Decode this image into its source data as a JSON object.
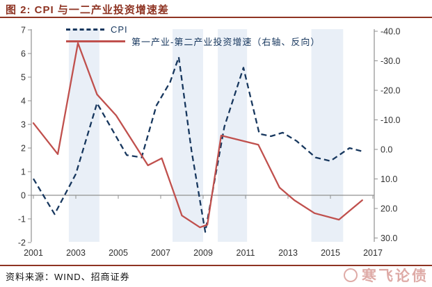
{
  "header": {
    "title": "图 2:  CPI 与一二产业投资增速差"
  },
  "footer": {
    "source_label": "资料来源：WIND、招商证券",
    "watermark_text": "寒飞论债"
  },
  "colors": {
    "title_red": "#8E3322",
    "cpi_line": "#17375E",
    "diff_line": "#C0504D",
    "band_fill": "#E9EFF7",
    "axis_gray": "#909090",
    "tick_text": "#303030"
  },
  "chart_data": {
    "type": "line",
    "title": "图 2: CPI 与一二产业投资增速差",
    "grid": "off",
    "legend_position": "top-left-inside",
    "legend": [
      {
        "name": "CPI",
        "color": "#17375E",
        "style": "dashed",
        "axis": "left"
      },
      {
        "name": "第一产业-第二产业投资增速（右轴、反向）",
        "color": "#C0504D",
        "style": "solid",
        "axis": "right-reversed"
      }
    ],
    "left_axis": {
      "label": "",
      "min": -2,
      "max": 7,
      "ticks": [
        7,
        6,
        5,
        4,
        3,
        2,
        1,
        0,
        -1,
        -2
      ]
    },
    "right_axis": {
      "label": "",
      "min": -40,
      "max": 30,
      "reversed": true,
      "ticks": [
        "-40.0",
        "-30.0",
        "-20.0",
        "-10.0",
        "0.0",
        "10.0",
        "20.0",
        "30.0"
      ]
    },
    "x_axis": {
      "min": 2001,
      "max": 2017.4,
      "tick_labels": [
        "2001",
        "2003",
        "2005",
        "2007",
        "2009",
        "2011",
        "2013",
        "2015",
        "2017"
      ]
    },
    "shaded_bands_years": [
      [
        2002.67,
        2004.11
      ],
      [
        2007.56,
        2009.0
      ],
      [
        2009.69,
        2011.07
      ],
      [
        2014.1,
        2015.6
      ]
    ],
    "series": [
      {
        "name": "CPI",
        "axis": "left",
        "points": [
          [
            2001.0,
            0.7
          ],
          [
            2002.0,
            -0.8
          ],
          [
            2003.0,
            0.9
          ],
          [
            2004.0,
            3.9
          ],
          [
            2005.4,
            1.7
          ],
          [
            2006.1,
            1.6
          ],
          [
            2006.8,
            3.8
          ],
          [
            2007.45,
            4.8
          ],
          [
            2007.85,
            5.85
          ],
          [
            2008.45,
            1.9
          ],
          [
            2009.1,
            -1.55
          ],
          [
            2010.0,
            2.9
          ],
          [
            2010.9,
            5.4
          ],
          [
            2011.65,
            2.6
          ],
          [
            2012.2,
            2.5
          ],
          [
            2012.75,
            2.65
          ],
          [
            2013.4,
            2.3
          ],
          [
            2014.3,
            1.6
          ],
          [
            2015.0,
            1.45
          ],
          [
            2015.9,
            2.0
          ],
          [
            2016.55,
            1.85
          ]
        ]
      },
      {
        "name": "第一产业-第二产业投资增速",
        "axis": "right",
        "points": [
          [
            2001.0,
            -8.9
          ],
          [
            2002.15,
            1.6
          ],
          [
            2003.1,
            -36.0
          ],
          [
            2004.0,
            -18.6
          ],
          [
            2004.9,
            -11.5
          ],
          [
            2006.4,
            5.4
          ],
          [
            2007.05,
            3.0
          ],
          [
            2008.0,
            22.4
          ],
          [
            2008.85,
            26.4
          ],
          [
            2009.2,
            25.5
          ],
          [
            2009.85,
            -4.7
          ],
          [
            2011.6,
            -1.6
          ],
          [
            2012.6,
            12.9
          ],
          [
            2013.3,
            17.2
          ],
          [
            2014.25,
            21.6
          ],
          [
            2015.4,
            23.8
          ],
          [
            2016.5,
            17.2
          ]
        ]
      }
    ]
  }
}
